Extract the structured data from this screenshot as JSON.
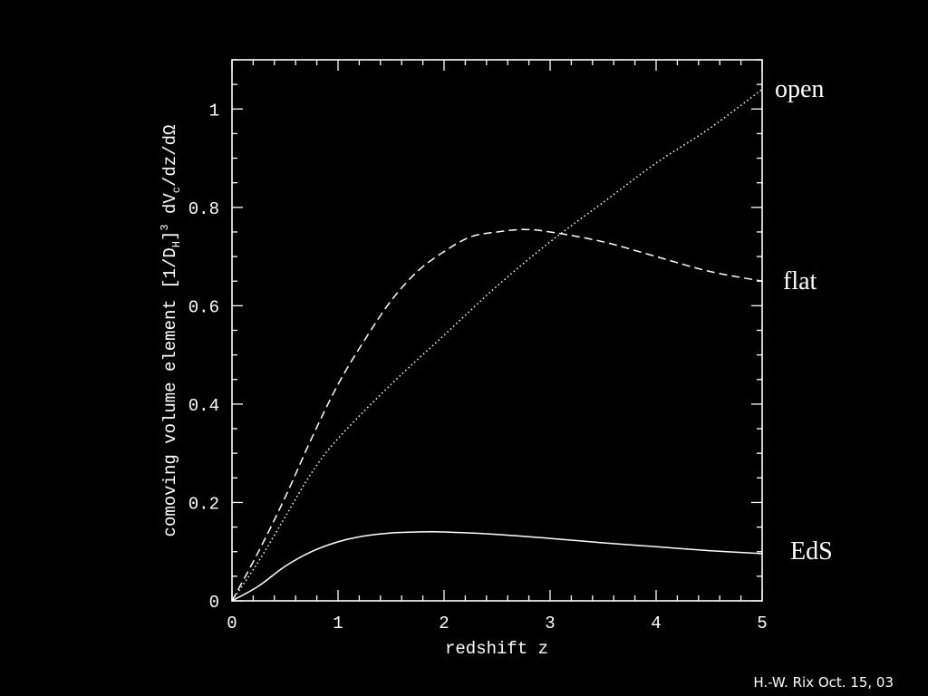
{
  "chart_data": {
    "type": "line",
    "xlabel": "redshift z",
    "ylabel_parts": {
      "main": "comoving volume element  [1/D",
      "sub1": "H",
      "mid": "]",
      "sup": "3",
      "mid2": " dV",
      "sub2": "c",
      "tail": "/dz/dΩ"
    },
    "xlim": [
      0,
      5
    ],
    "ylim": [
      0,
      1.1
    ],
    "x_ticks": [
      0,
      1,
      2,
      3,
      4,
      5
    ],
    "y_ticks": [
      0,
      0.2,
      0.4,
      0.6,
      0.8,
      1
    ],
    "y_tick_labels": [
      "0",
      "0.2",
      "0.4",
      "0.6",
      "0.8",
      "1"
    ],
    "series": [
      {
        "name": "open",
        "style": "dotted",
        "x": [
          0,
          0.25,
          0.5,
          0.75,
          1,
          1.5,
          2,
          2.5,
          3,
          3.5,
          4,
          4.5,
          5
        ],
        "y": [
          0,
          0.08,
          0.17,
          0.26,
          0.33,
          0.44,
          0.54,
          0.64,
          0.73,
          0.81,
          0.89,
          0.96,
          1.04
        ]
      },
      {
        "name": "flat",
        "style": "dashed",
        "x": [
          0,
          0.25,
          0.5,
          0.75,
          1,
          1.25,
          1.5,
          1.75,
          2,
          2.25,
          2.5,
          2.75,
          3,
          3.5,
          4,
          4.5,
          5
        ],
        "y": [
          0,
          0.1,
          0.21,
          0.33,
          0.44,
          0.53,
          0.61,
          0.67,
          0.71,
          0.74,
          0.75,
          0.755,
          0.75,
          0.73,
          0.7,
          0.67,
          0.65
        ]
      },
      {
        "name": "EdS",
        "style": "solid",
        "x": [
          0,
          0.25,
          0.5,
          0.75,
          1,
          1.25,
          1.5,
          1.75,
          2,
          2.5,
          3,
          3.5,
          4,
          4.5,
          5
        ],
        "y": [
          0,
          0.03,
          0.07,
          0.1,
          0.12,
          0.132,
          0.138,
          0.14,
          0.14,
          0.135,
          0.127,
          0.118,
          0.11,
          0.102,
          0.096
        ]
      }
    ],
    "curve_labels": [
      "open",
      "flat",
      "EdS"
    ]
  },
  "credit": "H.-W. Rix Oct. 15, 03"
}
